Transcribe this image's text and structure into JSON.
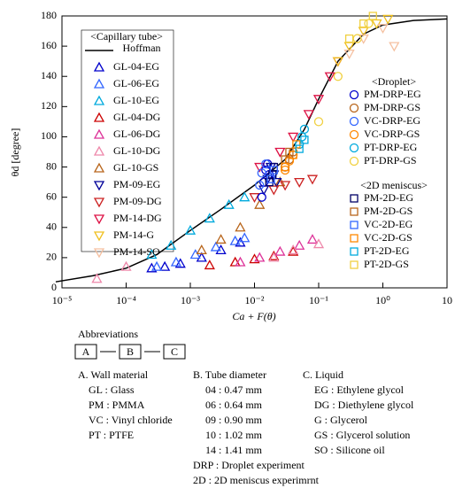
{
  "chart_data": {
    "type": "scatter",
    "x_label": "Ca + F(θ)",
    "y_label": "θd [degree]",
    "xscale": "log",
    "xlim": [
      1e-05,
      10
    ],
    "ylim": [
      0,
      180
    ],
    "xticks": [
      {
        "value": 1e-05,
        "label": "10⁻⁵"
      },
      {
        "value": 0.0001,
        "label": "10⁻⁴"
      },
      {
        "value": 0.001,
        "label": "10⁻³"
      },
      {
        "value": 0.01,
        "label": "10⁻²"
      },
      {
        "value": 0.1,
        "label": "10⁻¹"
      },
      {
        "value": 1,
        "label": "10⁰"
      },
      10
    ],
    "yticks": [
      0,
      20,
      40,
      60,
      80,
      100,
      120,
      140,
      160,
      180
    ],
    "groups": [
      {
        "title": "<Capillary tube>",
        "series": [
          {
            "name": "Hoffman",
            "marker": "line",
            "color": "#000000",
            "x": [
              8e-06,
              3e-05,
              0.0001,
              0.0003,
              0.001,
              0.003,
              0.01,
              0.03,
              0.06,
              0.1,
              0.2,
              0.5,
              1,
              3,
              10
            ],
            "y": [
              4,
              8,
              13,
              22,
              38,
              52,
              68,
              85,
              105,
              125,
              150,
              168,
              174,
              177,
              178
            ]
          },
          {
            "name": "GL-04-EG",
            "marker": "triangle",
            "color": "#0000cc",
            "x": [
              0.00025,
              0.0004,
              0.0007,
              0.0015,
              0.003,
              0.006
            ],
            "y": [
              13,
              14,
              16,
              20,
              25,
              30
            ]
          },
          {
            "name": "GL-06-EG",
            "marker": "triangle",
            "color": "#3366ff",
            "x": [
              0.0003,
              0.0006,
              0.0012,
              0.0025,
              0.005,
              0.007
            ],
            "y": [
              14,
              17,
              22,
              27,
              31,
              33
            ]
          },
          {
            "name": "GL-10-EG",
            "marker": "triangle",
            "color": "#00aadd",
            "x": [
              0.00025,
              0.0005,
              0.001,
              0.002,
              0.004,
              0.007
            ],
            "y": [
              22,
              28,
              38,
              46,
              55,
              60
            ]
          },
          {
            "name": "GL-04-DG",
            "marker": "triangle",
            "color": "#cc0000",
            "x": [
              0.002,
              0.005,
              0.01,
              0.02,
              0.04
            ],
            "y": [
              15,
              17,
              19,
              21,
              24
            ]
          },
          {
            "name": "GL-06-DG",
            "marker": "triangle",
            "color": "#dd3399",
            "x": [
              0.006,
              0.012,
              0.025,
              0.05,
              0.08
            ],
            "y": [
              17,
              20,
              24,
              28,
              32
            ]
          },
          {
            "name": "GL-10-DG",
            "marker": "triangle",
            "color": "#ee88aa",
            "x": [
              3.5e-05,
              0.0001,
              0.02,
              0.04,
              0.1
            ],
            "y": [
              6,
              14,
              20,
              25,
              29
            ]
          },
          {
            "name": "GL-10-GS",
            "marker": "triangle",
            "color": "#b8651b",
            "x": [
              0.0015,
              0.003,
              0.006,
              0.012,
              0.025
            ],
            "y": [
              25,
              32,
              40,
              55,
              70
            ]
          },
          {
            "name": "PM-09-EG",
            "marker": "down",
            "color": "#000099",
            "x": [
              0.014,
              0.016,
              0.018,
              0.02,
              0.022
            ],
            "y": [
              65,
              72,
              80,
              75,
              70
            ]
          },
          {
            "name": "PM-09-DG",
            "marker": "down",
            "color": "#cc2222",
            "x": [
              0.01,
              0.02,
              0.03,
              0.05,
              0.08
            ],
            "y": [
              60,
              65,
              68,
              70,
              72
            ]
          },
          {
            "name": "PM-14-DG",
            "marker": "down",
            "color": "#dd1144",
            "x": [
              0.012,
              0.025,
              0.04,
              0.07,
              0.1,
              0.15,
              0.2
            ],
            "y": [
              80,
              90,
              100,
              115,
              125,
              140,
              150
            ]
          },
          {
            "name": "PM-14-G",
            "marker": "down",
            "color": "#f0c020",
            "x": [
              0.2,
              0.3,
              0.5,
              0.8,
              1.2
            ],
            "y": [
              150,
              160,
              170,
              175,
              178
            ]
          },
          {
            "name": "PM-14-SO",
            "marker": "down",
            "color": "#f5c0a0",
            "x": [
              0.3,
              0.5,
              1,
              1.5
            ],
            "y": [
              155,
              165,
              172,
              160
            ]
          }
        ]
      },
      {
        "title": "<Droplet>",
        "series": [
          {
            "name": "PM-DRP-EG",
            "marker": "circle",
            "color": "#0000cc",
            "x": [
              0.013,
              0.014,
              0.015,
              0.016,
              0.017
            ],
            "y": [
              60,
              70,
              78,
              82,
              75
            ]
          },
          {
            "name": "PM-DRP-GS",
            "marker": "circle",
            "color": "#b8651b",
            "x": [
              0.03,
              0.035,
              0.04
            ],
            "y": [
              80,
              85,
              90
            ]
          },
          {
            "name": "VC-DRP-EG",
            "marker": "circle",
            "color": "#3366ff",
            "x": [
              0.012,
              0.013,
              0.015
            ],
            "y": [
              68,
              76,
              82
            ]
          },
          {
            "name": "VC-DRP-GS",
            "marker": "circle",
            "color": "#ff8800",
            "x": [
              0.03,
              0.035,
              0.04
            ],
            "y": [
              78,
              84,
              88
            ]
          },
          {
            "name": "PT-DRP-EG",
            "marker": "circle",
            "color": "#00aadd",
            "x": [
              0.05,
              0.055,
              0.06
            ],
            "y": [
              95,
              100,
              105
            ]
          },
          {
            "name": "PT-DRP-GS",
            "marker": "circle",
            "color": "#f0d040",
            "x": [
              0.1,
              0.2,
              0.4,
              0.6
            ],
            "y": [
              110,
              140,
              165,
              175
            ]
          }
        ]
      },
      {
        "title": "<2D meniscus>",
        "series": [
          {
            "name": "PM-2D-EG",
            "marker": "square",
            "color": "#000066",
            "x": [
              0.017,
              0.019,
              0.02
            ],
            "y": [
              70,
              75,
              80
            ]
          },
          {
            "name": "PM-2D-GS",
            "marker": "square",
            "color": "#b8651b",
            "x": [
              0.03,
              0.035
            ],
            "y": [
              85,
              90
            ]
          },
          {
            "name": "VC-2D-EG",
            "marker": "square",
            "color": "#3366ff",
            "x": [
              0.018,
              0.02
            ],
            "y": [
              72,
              78
            ]
          },
          {
            "name": "VC-2D-GS",
            "marker": "square",
            "color": "#ff8800",
            "x": [
              0.03,
              0.04,
              0.045
            ],
            "y": [
              80,
              88,
              95
            ]
          },
          {
            "name": "PT-2D-EG",
            "marker": "square",
            "color": "#00aadd",
            "x": [
              0.05,
              0.06
            ],
            "y": [
              92,
              98
            ]
          },
          {
            "name": "PT-2D-GS",
            "marker": "square",
            "color": "#f0d040",
            "x": [
              0.3,
              0.5,
              0.7
            ],
            "y": [
              165,
              175,
              180
            ]
          }
        ]
      }
    ]
  },
  "abbreviations": {
    "title": "Abbreviations",
    "boxes": [
      "A",
      "B",
      "C"
    ],
    "columns": [
      {
        "heading": "A. Wall material",
        "items": [
          "GL : Glass",
          "PM : PMMA",
          "VC : Vinyl chloride",
          "PT : PTFE"
        ]
      },
      {
        "heading": "B. Tube diameter",
        "items": [
          "04 : 0.47 mm",
          "06 : 0.64 mm",
          "09 : 0.90 mm",
          "10 : 1.02 mm",
          "14 : 1.41 mm",
          "DRP : Droplet experiment",
          "2D : 2D meniscus experimrnt"
        ]
      },
      {
        "heading": "C. Liquid",
        "items": [
          "EG : Ethylene glycol",
          "DG : Diethylene glycol",
          "G : Glycerol",
          "GS : Glycerol solution",
          "SO : Silicone oil"
        ]
      }
    ]
  }
}
